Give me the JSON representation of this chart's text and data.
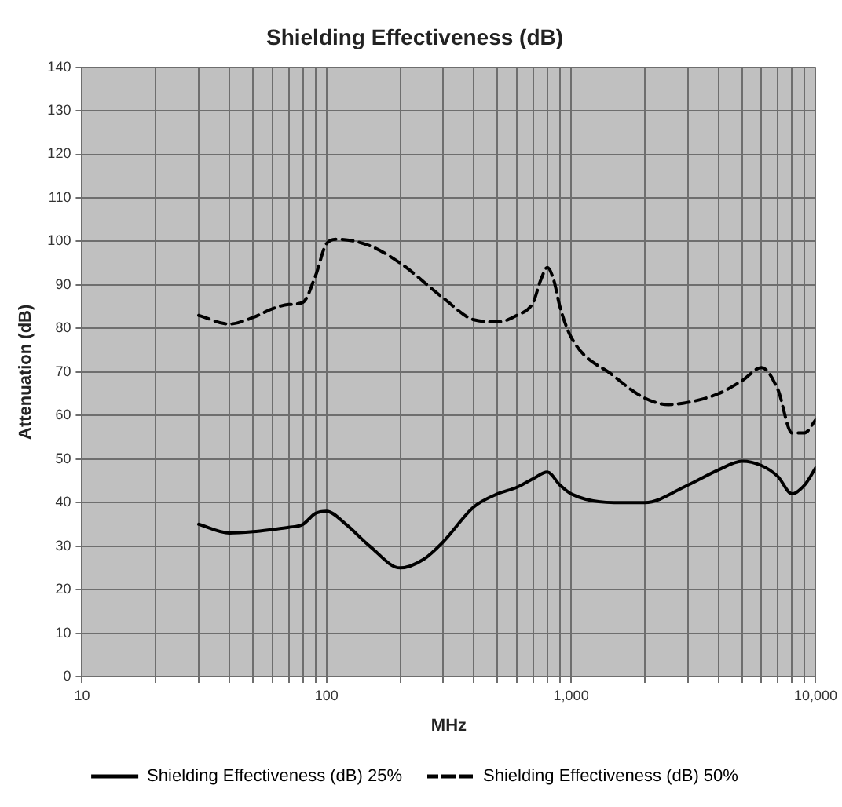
{
  "chart_data": {
    "type": "line",
    "title": "Shielding Effectiveness (dB)",
    "xlabel": "MHz",
    "ylabel": "Attenuation (dB)",
    "log": "x",
    "xlim": [
      10,
      10000
    ],
    "xticks": [
      {
        "value": 10,
        "label": "10"
      },
      {
        "value": 20,
        "label": null
      },
      {
        "value": 30,
        "label": null
      },
      {
        "value": 40,
        "label": null
      },
      {
        "value": 50,
        "label": null
      },
      {
        "value": 60,
        "label": null
      },
      {
        "value": 70,
        "label": null
      },
      {
        "value": 80,
        "label": null
      },
      {
        "value": 90,
        "label": null
      },
      {
        "value": 100,
        "label": "100"
      },
      {
        "value": 200,
        "label": null
      },
      {
        "value": 300,
        "label": null
      },
      {
        "value": 400,
        "label": null
      },
      {
        "value": 500,
        "label": null
      },
      {
        "value": 600,
        "label": null
      },
      {
        "value": 700,
        "label": null
      },
      {
        "value": 800,
        "label": null
      },
      {
        "value": 900,
        "label": null
      },
      {
        "value": 1000,
        "label": "1,000"
      },
      {
        "value": 2000,
        "label": null
      },
      {
        "value": 3000,
        "label": null
      },
      {
        "value": 4000,
        "label": null
      },
      {
        "value": 5000,
        "label": null
      },
      {
        "value": 6000,
        "label": null
      },
      {
        "value": 7000,
        "label": null
      },
      {
        "value": 8000,
        "label": null
      },
      {
        "value": 9000,
        "label": null
      },
      {
        "value": 10000,
        "label": "10,000"
      }
    ],
    "ylim": [
      0,
      140
    ],
    "yticks": [
      0,
      10,
      20,
      30,
      40,
      50,
      60,
      70,
      80,
      90,
      100,
      110,
      120,
      130,
      140
    ],
    "grid": true,
    "legend": "bottom",
    "marker": "none",
    "series": [
      {
        "name": "Shielding Effectiveness (dB) 25%",
        "color": "#000000",
        "line_style": "solid",
        "x": [
          30,
          40,
          50,
          60,
          70,
          80,
          90,
          100,
          120,
          150,
          200,
          250,
          300,
          400,
          500,
          600,
          700,
          800,
          900,
          1000,
          1500,
          2000,
          3000,
          4000,
          5000,
          6000,
          7000,
          8000,
          9000,
          10000
        ],
        "values": [
          35,
          33,
          33.3,
          33.8,
          34.3,
          35,
          37.5,
          38,
          35,
          30,
          25,
          27,
          31,
          39,
          42,
          43.5,
          45.5,
          47,
          44,
          42,
          40,
          40,
          44,
          47.5,
          49.5,
          48.5,
          46,
          42,
          44,
          48
        ]
      },
      {
        "name": "Shielding Effectiveness (dB) 50%",
        "color": "#000000",
        "line_style": "dashed",
        "x": [
          30,
          40,
          50,
          60,
          70,
          80,
          90,
          100,
          110,
          150,
          200,
          300,
          400,
          500,
          600,
          700,
          750,
          800,
          850,
          900,
          1000,
          1500,
          2000,
          2500,
          3000,
          4000,
          5000,
          6000,
          7000,
          8000,
          9000,
          10000
        ],
        "values": [
          83,
          81,
          82.5,
          84.5,
          85.5,
          86,
          92,
          99.5,
          100.5,
          99,
          95,
          87,
          82,
          81.5,
          83,
          86,
          91,
          94,
          91,
          85,
          78,
          69,
          64,
          62.5,
          63,
          65,
          68,
          71,
          66,
          56,
          56,
          59
        ]
      }
    ]
  }
}
